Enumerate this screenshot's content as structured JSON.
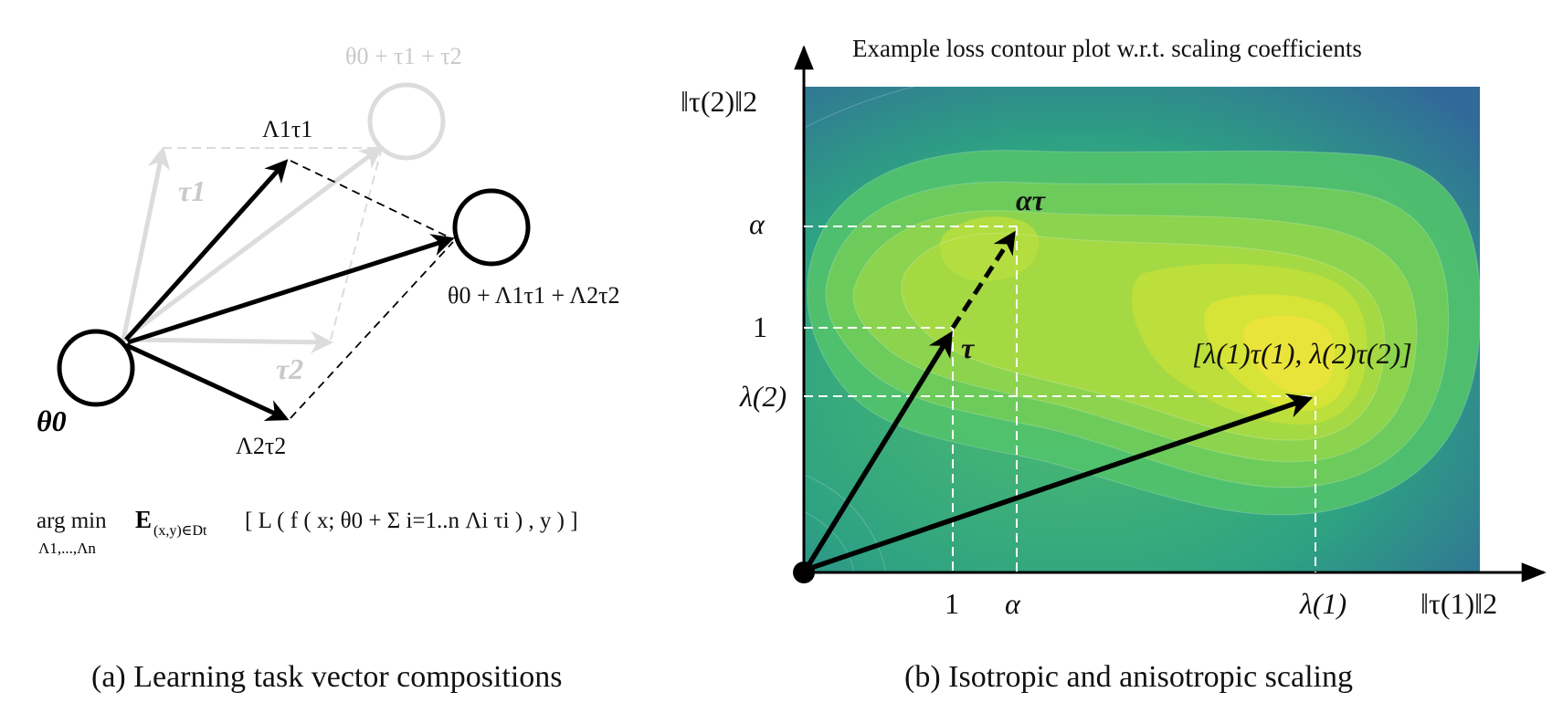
{
  "captions": {
    "left": "(a) Learning task vector compositions",
    "right": "(b) Isotropic and anisotropic scaling"
  },
  "left_panel": {
    "theta0": "θ0",
    "ghost_target": "θ0 + τ1 + τ2",
    "tau1": "τ1",
    "tau2": "τ2",
    "scaled_tau1": "Λ1τ1",
    "scaled_tau2": "Λ2τ2",
    "composed_target": "θ0 + Λ1τ1 + Λ2τ2",
    "objective": {
      "argmin": "arg min",
      "argmin_sub": "Λ1,...,Λn",
      "expectation": "E",
      "expectation_sub": "(x,y)∈Dt",
      "body": "[ L ( f ( x; θ0 + Σ i=1..n Λi τi ) , y ) ]"
    }
  },
  "right_panel": {
    "title": "Example loss contour plot w.r.t. scaling coefficients",
    "y_axis_label": "‖τ(2)‖2",
    "x_axis_label": "‖τ(1)‖2",
    "y_ticks": [
      "α",
      "1",
      "λ(2)"
    ],
    "x_ticks": [
      "1",
      "α",
      "λ(1)"
    ],
    "labels": {
      "tau": "τ",
      "alpha_tau": "ατ",
      "aniso": "[λ(1)τ(1), λ(2)τ(2)]"
    },
    "colors": {
      "dark": "#3b5b93",
      "mid": "#29a17f",
      "light": "#9ed543",
      "peak": "#f1e539"
    }
  }
}
